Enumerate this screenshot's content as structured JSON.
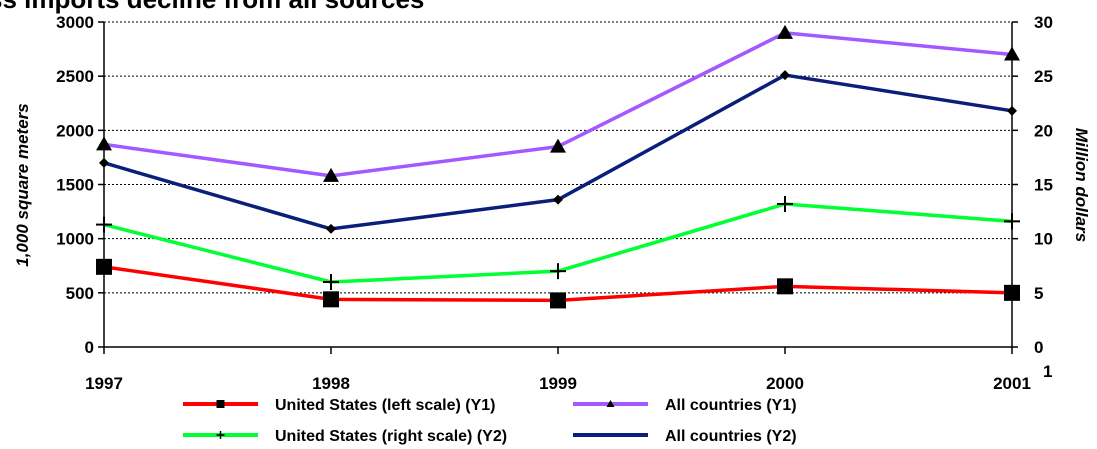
{
  "chart_data": {
    "type": "line",
    "title": "ss imports decline from all sources",
    "x": [
      "1997",
      "1998",
      "1999",
      "2000",
      "2001"
    ],
    "x_superscript": "1",
    "ylabel_left": "1,000 square meters",
    "ylabel_right": "Million dollars",
    "ylim_left": [
      0,
      3000
    ],
    "ylim_right": [
      0,
      30
    ],
    "left_ticks": [
      "0",
      "500",
      "1000",
      "1500",
      "2000",
      "2500",
      "3000"
    ],
    "right_ticks": [
      "0",
      "5",
      "10",
      "15",
      "20",
      "25",
      "30"
    ],
    "grid": "horizontal dashed",
    "legend_position": "bottom",
    "series": [
      {
        "name": "United States (left scale) (Y1)",
        "axis": "left",
        "color": "#ff0000",
        "marker": "square",
        "values": [
          740,
          440,
          430,
          560,
          500
        ]
      },
      {
        "name": "All countries (Y1)",
        "axis": "left",
        "color": "#a259ff",
        "marker": "triangle",
        "values": [
          1870,
          1580,
          1850,
          2900,
          2700
        ]
      },
      {
        "name": "United States (right scale) (Y2)",
        "axis": "right",
        "color": "#00ff33",
        "marker": "plus",
        "values": [
          11.3,
          6.0,
          7.0,
          13.2,
          11.6
        ]
      },
      {
        "name": "All countries (Y2)",
        "axis": "right",
        "color": "#0a1f7a",
        "marker": "diamond",
        "values": [
          17.0,
          10.9,
          13.6,
          25.1,
          21.8
        ]
      }
    ]
  }
}
